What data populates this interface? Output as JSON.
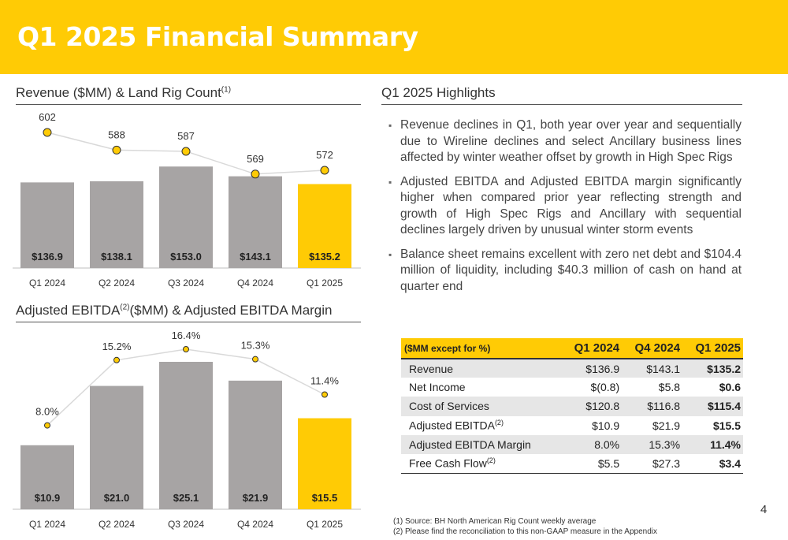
{
  "title": "Q1 2025 Financial Summary",
  "page_number": "4",
  "revenue_section": {
    "title": "Revenue ($MM) & Land Rig Count",
    "title_sup": "(1)"
  },
  "ebitda_section": {
    "title_a": "Adjusted EBITDA",
    "title_sup": "(2)",
    "title_b": "($MM) & Adjusted EBITDA Margin"
  },
  "highlights": {
    "title": "Q1 2025 Highlights",
    "bullets": [
      "Revenue declines in Q1, both year over year and sequentially due to Wireline declines and select Ancillary business lines affected by winter weather offset by growth in High Spec Rigs",
      "Adjusted EBITDA and Adjusted EBITDA margin significantly higher when compared prior year reflecting strength and growth of High Spec Rigs and Ancillary with sequential declines largely driven by unusual winter storm events",
      "Balance sheet remains excellent with zero net debt and $104.4 million of liquidity, including $40.3 million of cash on hand at quarter end"
    ]
  },
  "table": {
    "headers": [
      "($MM except for %)",
      "Q1 2024",
      "Q4 2024",
      "Q1 2025"
    ],
    "rows": [
      {
        "label": "Revenue",
        "sup": "",
        "values": [
          "$136.9",
          "$143.1",
          "$135.2"
        ]
      },
      {
        "label": "Net Income",
        "sup": "",
        "values": [
          "$(0.8)",
          "$5.8",
          "$0.6"
        ]
      },
      {
        "label": "Cost of Services",
        "sup": "",
        "values": [
          "$120.8",
          "$116.8",
          "$115.4"
        ]
      },
      {
        "label": "Adjusted EBITDA",
        "sup": "(2)",
        "values": [
          "$10.9",
          "$21.9",
          "$15.5"
        ]
      },
      {
        "label": "Adjusted EBITDA Margin",
        "sup": "",
        "values": [
          "8.0%",
          "15.3%",
          "11.4%"
        ]
      },
      {
        "label": "Free Cash Flow",
        "sup": "(2)",
        "values": [
          "$5.5",
          "$27.3",
          "$3.4"
        ]
      }
    ]
  },
  "footnotes": [
    "(1) Source: BH North American Rig Count weekly average",
    "(2) Please find the reconciliation to this non-GAAP measure in the Appendix"
  ],
  "colors": {
    "accent": "#ffcb05",
    "bar_gray": "#a7a4a4",
    "marker_edge": "#333333"
  },
  "chart_data": [
    {
      "type": "bar",
      "title": "Revenue ($MM) & Land Rig Count",
      "categories": [
        "Q1 2024",
        "Q2 2024",
        "Q3 2024",
        "Q4 2024",
        "Q1 2025"
      ],
      "series": [
        {
          "name": "Revenue ($MM)",
          "values": [
            136.9,
            138.1,
            153.0,
            143.1,
            135.2
          ],
          "labels": [
            "$136.9",
            "$138.1",
            "$153.0",
            "$143.1",
            "$135.2"
          ],
          "type": "bar"
        },
        {
          "name": "Land Rig Count",
          "values": [
            602,
            588,
            587,
            569,
            572
          ],
          "labels": [
            "602",
            "588",
            "587",
            "569",
            "572"
          ],
          "type": "line"
        }
      ],
      "highlight_category": "Q1 2025",
      "grid": false
    },
    {
      "type": "bar",
      "title": "Adjusted EBITDA($MM) & Adjusted EBITDA Margin",
      "categories": [
        "Q1 2024",
        "Q2 2024",
        "Q3 2024",
        "Q4 2024",
        "Q1 2025"
      ],
      "series": [
        {
          "name": "Adjusted EBITDA ($MM)",
          "values": [
            10.9,
            21.0,
            25.1,
            21.9,
            15.5
          ],
          "labels": [
            "$10.9",
            "$21.0",
            "$25.1",
            "$21.9",
            "$15.5"
          ],
          "type": "bar"
        },
        {
          "name": "Adjusted EBITDA Margin",
          "values": [
            8.0,
            15.2,
            16.4,
            15.3,
            11.4
          ],
          "labels": [
            "8.0%",
            "15.2%",
            "16.4%",
            "15.3%",
            "11.4%"
          ],
          "type": "line"
        }
      ],
      "highlight_category": "Q1 2025",
      "grid": false
    }
  ]
}
